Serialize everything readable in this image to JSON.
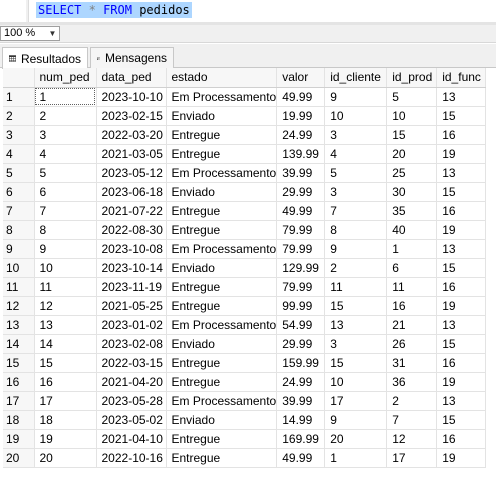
{
  "editor": {
    "query_kw_select": "SELECT",
    "query_star": "*",
    "query_kw_from": "FROM",
    "query_table": "pedidos"
  },
  "toolbar": {
    "zoom": "100 %"
  },
  "tabs": {
    "results": "Resultados",
    "messages": "Mensagens"
  },
  "grid": {
    "columns": [
      "num_ped",
      "data_ped",
      "estado",
      "valor",
      "id_cliente",
      "id_prod",
      "id_func"
    ],
    "rows": [
      [
        "1",
        "1",
        "2023-10-10",
        "Em Processamento",
        "49.99",
        "9",
        "5",
        "13"
      ],
      [
        "2",
        "2",
        "2023-02-15",
        "Enviado",
        "19.99",
        "10",
        "10",
        "15"
      ],
      [
        "3",
        "3",
        "2022-03-20",
        "Entregue",
        "24.99",
        "3",
        "15",
        "16"
      ],
      [
        "4",
        "4",
        "2021-03-05",
        "Entregue",
        "139.99",
        "4",
        "20",
        "19"
      ],
      [
        "5",
        "5",
        "2023-05-12",
        "Em Processamento",
        "39.99",
        "5",
        "25",
        "13"
      ],
      [
        "6",
        "6",
        "2023-06-18",
        "Enviado",
        "29.99",
        "3",
        "30",
        "15"
      ],
      [
        "7",
        "7",
        "2021-07-22",
        "Entregue",
        "49.99",
        "7",
        "35",
        "16"
      ],
      [
        "8",
        "8",
        "2022-08-30",
        "Entregue",
        "79.99",
        "8",
        "40",
        "19"
      ],
      [
        "9",
        "9",
        "2023-10-08",
        "Em Processamento",
        "79.99",
        "9",
        "1",
        "13"
      ],
      [
        "10",
        "10",
        "2023-10-14",
        "Enviado",
        "129.99",
        "2",
        "6",
        "15"
      ],
      [
        "11",
        "11",
        "2023-11-19",
        "Entregue",
        "79.99",
        "11",
        "11",
        "16"
      ],
      [
        "12",
        "12",
        "2021-05-25",
        "Entregue",
        "99.99",
        "15",
        "16",
        "19"
      ],
      [
        "13",
        "13",
        "2023-01-02",
        "Em Processamento",
        "54.99",
        "13",
        "21",
        "13"
      ],
      [
        "14",
        "14",
        "2023-02-08",
        "Enviado",
        "29.99",
        "3",
        "26",
        "15"
      ],
      [
        "15",
        "15",
        "2022-03-15",
        "Entregue",
        "159.99",
        "15",
        "31",
        "16"
      ],
      [
        "16",
        "16",
        "2021-04-20",
        "Entregue",
        "24.99",
        "10",
        "36",
        "19"
      ],
      [
        "17",
        "17",
        "2023-05-28",
        "Em Processamento",
        "39.99",
        "17",
        "2",
        "13"
      ],
      [
        "18",
        "18",
        "2023-05-02",
        "Enviado",
        "14.99",
        "9",
        "7",
        "15"
      ],
      [
        "19",
        "19",
        "2021-04-10",
        "Entregue",
        "169.99",
        "20",
        "12",
        "16"
      ],
      [
        "20",
        "20",
        "2022-10-16",
        "Entregue",
        "49.99",
        "1",
        "17",
        "19"
      ]
    ]
  }
}
